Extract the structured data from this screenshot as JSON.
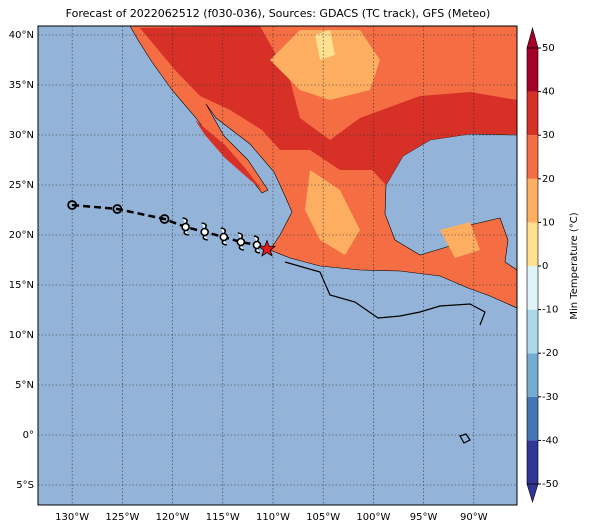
{
  "title": "Forecast of 2022062512 (f030-036), Sources: GDACS (TC track), GFS (Meteo)",
  "map": {
    "lon_range": [
      -133.4,
      -85.7
    ],
    "lat_range": [
      -7,
      40.9
    ],
    "lon_ticks": [
      {
        "value": -130,
        "label": "130°W"
      },
      {
        "value": -125,
        "label": "125°W"
      },
      {
        "value": -120,
        "label": "120°W"
      },
      {
        "value": -115,
        "label": "115°W"
      },
      {
        "value": -110,
        "label": "110°W"
      },
      {
        "value": -105,
        "label": "105°W"
      },
      {
        "value": -100,
        "label": "100°W"
      },
      {
        "value": -95,
        "label": "95°W"
      },
      {
        "value": -90,
        "label": "90°W"
      }
    ],
    "lat_ticks": [
      {
        "value": 40,
        "label": "40°N"
      },
      {
        "value": 35,
        "label": "35°N"
      },
      {
        "value": 30,
        "label": "30°N"
      },
      {
        "value": 25,
        "label": "25°N"
      },
      {
        "value": 20,
        "label": "20°N"
      },
      {
        "value": 15,
        "label": "15°N"
      },
      {
        "value": 10,
        "label": "10°N"
      },
      {
        "value": 5,
        "label": "5°N"
      },
      {
        "value": 0,
        "label": "0°"
      },
      {
        "value": -5,
        "label": "5°S"
      }
    ],
    "track": [
      {
        "lon": -130.0,
        "lat": 23.0,
        "marker": "circle"
      },
      {
        "lon": -125.5,
        "lat": 22.6,
        "marker": "circle"
      },
      {
        "lon": -120.8,
        "lat": 21.6,
        "marker": "circle"
      },
      {
        "lon": -118.7,
        "lat": 20.8,
        "marker": "hurricane"
      },
      {
        "lon": -116.8,
        "lat": 20.3,
        "marker": "hurricane"
      },
      {
        "lon": -114.9,
        "lat": 19.8,
        "marker": "hurricane"
      },
      {
        "lon": -113.2,
        "lat": 19.3,
        "marker": "hurricane"
      },
      {
        "lon": -111.6,
        "lat": 19.0,
        "marker": "hurricane"
      },
      {
        "lon": -110.6,
        "lat": 18.6,
        "marker": "star"
      }
    ]
  },
  "colorbar": {
    "label": "Min Temperature (°C)",
    "range": [
      -50,
      50
    ],
    "ticks": [
      -50,
      -40,
      -30,
      -20,
      -10,
      0,
      10,
      20,
      30,
      40,
      50
    ],
    "colors": [
      "#313695",
      "#4575b4",
      "#74add1",
      "#abd9e9",
      "#e0f3f8",
      "#fee090",
      "#fdae61",
      "#f46d43",
      "#d73027",
      "#a50026"
    ]
  }
}
